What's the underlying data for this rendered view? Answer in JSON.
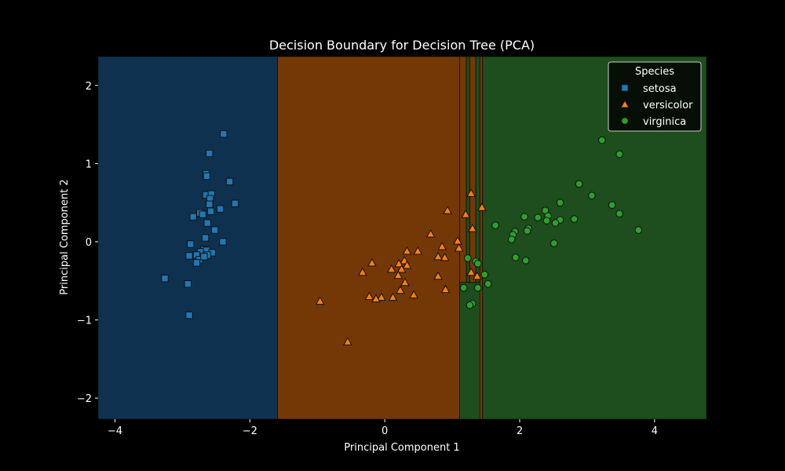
{
  "chart_data": {
    "type": "scatter",
    "title": "Decision Boundary for Decision Tree (PCA)",
    "xlabel": "Principal Component 1",
    "ylabel": "Principal Component 2",
    "xlim": [
      -4.25,
      4.77
    ],
    "ylim": [
      -2.27,
      2.37
    ],
    "xticks": [
      -4,
      -2,
      0,
      2,
      4
    ],
    "yticks": [
      -2,
      -1,
      0,
      1,
      2
    ],
    "tick_labels_x": [
      "−4",
      "−2",
      "0",
      "2",
      "4"
    ],
    "tick_labels_y": [
      "−2",
      "−1",
      "0",
      "1",
      "2"
    ],
    "grid": false,
    "legend": {
      "title": "Species",
      "placement": "top-right",
      "entries": [
        "setosa",
        "versicolor",
        "virginica"
      ]
    },
    "decision_regions": [
      {
        "class": "setosa",
        "x0": -4.25,
        "x1": -1.59,
        "y0": -2.27,
        "y1": 2.37
      },
      {
        "class": "versicolor",
        "x0": -1.59,
        "x1": 1.11,
        "y0": -2.27,
        "y1": 2.37
      },
      {
        "class": "virginica",
        "x0": 1.11,
        "x1": 4.77,
        "y0": -2.27,
        "y1": -0.52
      },
      {
        "class": "versicolor",
        "x0": 1.11,
        "x1": 1.21,
        "y0": -0.52,
        "y1": 2.37
      },
      {
        "class": "virginica",
        "x0": 1.21,
        "x1": 1.26,
        "y0": -0.52,
        "y1": 2.37
      },
      {
        "class": "versicolor",
        "x0": 1.26,
        "x1": 1.35,
        "y0": -0.52,
        "y1": 2.37
      },
      {
        "class": "virginica",
        "x0": 1.35,
        "x1": 1.41,
        "y0": -0.52,
        "y1": 2.37
      },
      {
        "class": "versicolor",
        "x0": 1.41,
        "x1": 1.45,
        "y0": -2.27,
        "y1": 2.37
      },
      {
        "class": "virginica",
        "x0": 1.45,
        "x1": 4.77,
        "y0": -2.27,
        "y1": 2.37
      }
    ],
    "series": [
      {
        "name": "setosa",
        "marker": "square",
        "color": "#1f77b4",
        "points": [
          [
            -2.39,
            1.38
          ],
          [
            -2.6,
            1.13
          ],
          [
            -2.65,
            0.87
          ],
          [
            -2.64,
            0.84
          ],
          [
            -2.3,
            0.77
          ],
          [
            -2.22,
            0.49
          ],
          [
            -2.65,
            0.6
          ],
          [
            -2.57,
            0.61
          ],
          [
            -2.59,
            0.55
          ],
          [
            -2.6,
            0.48
          ],
          [
            -2.74,
            0.37
          ],
          [
            -2.7,
            0.35
          ],
          [
            -2.84,
            0.32
          ],
          [
            -2.58,
            0.39
          ],
          [
            -2.44,
            0.42
          ],
          [
            -2.63,
            0.24
          ],
          [
            -2.52,
            0.15
          ],
          [
            -2.66,
            0.05
          ],
          [
            -2.4,
            0.0
          ],
          [
            -2.88,
            -0.03
          ],
          [
            -2.68,
            -0.1
          ],
          [
            -2.73,
            -0.13
          ],
          [
            -2.64,
            -0.11
          ],
          [
            -2.79,
            -0.17
          ],
          [
            -2.9,
            -0.18
          ],
          [
            -2.56,
            -0.14
          ],
          [
            -2.63,
            -0.17
          ],
          [
            -2.75,
            -0.23
          ],
          [
            -2.79,
            -0.27
          ],
          [
            -2.68,
            -0.19
          ],
          [
            -3.26,
            -0.47
          ],
          [
            -2.92,
            -0.54
          ],
          [
            -2.9,
            -0.94
          ]
        ]
      },
      {
        "name": "versicolor",
        "marker": "triangle",
        "color": "#ff7f0e",
        "points": [
          [
            1.28,
            0.62
          ],
          [
            1.44,
            0.44
          ],
          [
            0.93,
            0.4
          ],
          [
            1.2,
            0.35
          ],
          [
            1.3,
            0.17
          ],
          [
            0.68,
            0.1
          ],
          [
            1.08,
            0.01
          ],
          [
            0.85,
            -0.06
          ],
          [
            1.1,
            -0.08
          ],
          [
            0.49,
            -0.12
          ],
          [
            0.33,
            -0.12
          ],
          [
            0.89,
            -0.2
          ],
          [
            0.79,
            -0.19
          ],
          [
            0.29,
            -0.24
          ],
          [
            -0.19,
            -0.27
          ],
          [
            0.21,
            -0.28
          ],
          [
            0.33,
            -0.3
          ],
          [
            0.25,
            -0.35
          ],
          [
            0.1,
            -0.35
          ],
          [
            0.2,
            -0.43
          ],
          [
            -0.33,
            -0.39
          ],
          [
            1.28,
            -0.39
          ],
          [
            1.37,
            -0.44
          ],
          [
            0.79,
            -0.44
          ],
          [
            0.3,
            -0.52
          ],
          [
            0.9,
            -0.61
          ],
          [
            0.23,
            -0.62
          ],
          [
            0.43,
            -0.68
          ],
          [
            -0.23,
            -0.7
          ],
          [
            -0.05,
            -0.71
          ],
          [
            0.12,
            -0.71
          ],
          [
            -0.13,
            -0.73
          ],
          [
            -0.96,
            -0.76
          ],
          [
            -0.55,
            -1.28
          ]
        ]
      },
      {
        "name": "virginica",
        "marker": "circle",
        "color": "#2ca02c",
        "points": [
          [
            3.22,
            1.3
          ],
          [
            3.48,
            1.12
          ],
          [
            2.88,
            0.74
          ],
          [
            3.07,
            0.59
          ],
          [
            2.6,
            0.5
          ],
          [
            3.37,
            0.47
          ],
          [
            2.38,
            0.4
          ],
          [
            3.48,
            0.36
          ],
          [
            2.42,
            0.33
          ],
          [
            2.07,
            0.32
          ],
          [
            2.27,
            0.31
          ],
          [
            2.6,
            0.28
          ],
          [
            2.4,
            0.27
          ],
          [
            2.81,
            0.29
          ],
          [
            2.53,
            0.24
          ],
          [
            1.64,
            0.21
          ],
          [
            2.13,
            0.17
          ],
          [
            2.11,
            0.14
          ],
          [
            1.93,
            0.13
          ],
          [
            1.9,
            0.09
          ],
          [
            3.76,
            0.15
          ],
          [
            1.88,
            0.03
          ],
          [
            2.51,
            -0.02
          ],
          [
            1.94,
            -0.2
          ],
          [
            1.23,
            -0.21
          ],
          [
            2.09,
            -0.24
          ],
          [
            1.35,
            -0.25
          ],
          [
            1.38,
            -0.28
          ],
          [
            1.53,
            -0.54
          ],
          [
            1.48,
            -0.42
          ],
          [
            1.17,
            -0.59
          ],
          [
            1.38,
            -0.59
          ],
          [
            1.3,
            -0.79
          ],
          [
            1.26,
            -0.81
          ]
        ]
      }
    ]
  },
  "colors": {
    "setosa_region": "#0f3150",
    "versicolor_region": "#733806",
    "virginica_region": "#1e4d1e",
    "marker_edge": "#111111",
    "text": "#ffffff",
    "background": "#000000"
  }
}
